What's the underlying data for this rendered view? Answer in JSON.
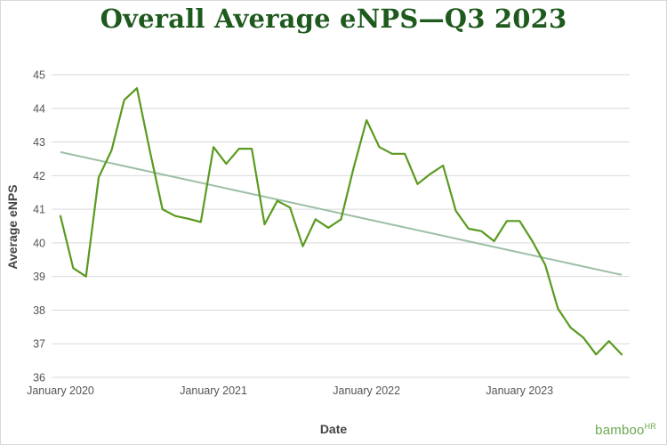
{
  "chart_data": {
    "type": "line",
    "title": "Overall Average eNPS—Q3 2023",
    "xlabel": "Date",
    "ylabel": "Average eNPS",
    "ylim": [
      36,
      45
    ],
    "yticks": [
      36,
      37,
      38,
      39,
      40,
      41,
      42,
      43,
      44,
      45
    ],
    "xticks": [
      "January 2020",
      "January 2021",
      "January 2022",
      "January 2023"
    ],
    "grid": true,
    "colors": {
      "series": "#5a9a1f",
      "trend": "#9dbfa5",
      "grid": "#d9d9d9",
      "title": "#1e5a1e"
    },
    "series": [
      {
        "x": [
          "2020-01",
          "2020-02",
          "2020-03",
          "2020-04",
          "2020-05",
          "2020-06",
          "2020-07",
          "2020-08",
          "2020-09",
          "2020-10",
          "2020-11",
          "2020-12",
          "2021-01",
          "2021-02",
          "2021-03",
          "2021-04",
          "2021-05",
          "2021-06",
          "2021-07",
          "2021-08",
          "2021-09",
          "2021-10",
          "2021-11",
          "2021-12",
          "2022-01",
          "2022-02",
          "2022-03",
          "2022-04",
          "2022-05",
          "2022-06",
          "2022-07",
          "2022-08",
          "2022-09",
          "2022-10",
          "2022-11",
          "2022-12",
          "2023-01",
          "2023-02",
          "2023-03",
          "2023-04",
          "2023-05",
          "2023-06",
          "2023-07",
          "2023-08",
          "2023-09"
        ],
        "values": [
          40.8,
          39.25,
          39.0,
          41.95,
          42.75,
          44.25,
          44.6,
          42.75,
          41.0,
          40.8,
          40.72,
          40.62,
          42.85,
          42.35,
          42.8,
          42.8,
          40.55,
          41.25,
          41.05,
          39.9,
          40.7,
          40.45,
          40.7,
          42.25,
          43.65,
          42.85,
          42.65,
          42.65,
          41.75,
          42.05,
          42.3,
          40.95,
          40.42,
          40.35,
          40.05,
          40.65,
          40.65,
          40.05,
          39.35,
          38.05,
          37.48,
          37.18,
          36.68,
          37.08,
          36.68
        ]
      },
      {
        "x": [
          "2020-01",
          "2023-09"
        ],
        "values": [
          42.7,
          39.05
        ]
      }
    ]
  },
  "branding": {
    "logo_text": "bamboo",
    "logo_suffix": "HR"
  }
}
